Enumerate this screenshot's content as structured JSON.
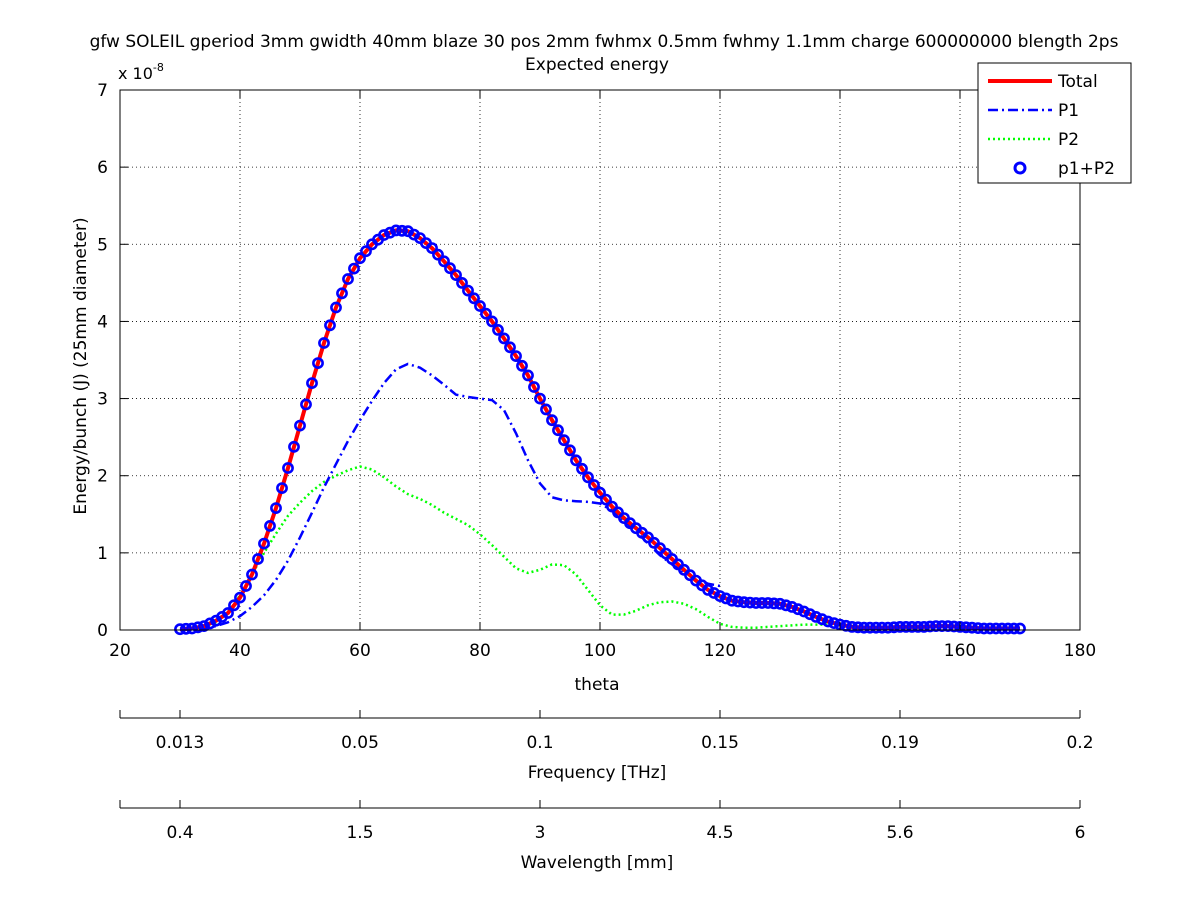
{
  "chart_data": {
    "type": "line",
    "title": "gfw SOLEIL gperiod 3mm gwidth 40mm blaze 30 pos 2mm fwhmx 0.5mm fwhmy 1.1mm charge 600000000 blength 2ps",
    "subtitle": "Expected energy",
    "xlabel": "theta",
    "ylabel": "Energy/bunch (J) (25mm diameter)",
    "y_exponent_label": "x 10",
    "y_exponent_power": "-8",
    "xlim": [
      20,
      180
    ],
    "ylim": [
      0,
      7
    ],
    "x_ticks": [
      "20",
      "40",
      "60",
      "80",
      "100",
      "120",
      "140",
      "160",
      "180"
    ],
    "y_ticks": [
      "0",
      "1",
      "2",
      "3",
      "4",
      "5",
      "6",
      "7"
    ],
    "grid": true,
    "legend_placement": "top-right",
    "colors": {
      "total": "#ff0000",
      "p1": "#0000ff",
      "p2": "#00ff00",
      "markers": "#0000ff"
    },
    "series": [
      {
        "name": "Total",
        "style": "solid",
        "x": [
          30,
          32,
          34,
          36,
          38,
          40,
          42,
          44,
          46,
          48,
          50,
          52,
          54,
          56,
          58,
          60,
          62,
          64,
          66,
          68,
          70,
          72,
          74,
          76,
          78,
          80,
          82,
          84,
          86,
          88,
          90,
          92,
          94,
          96,
          98,
          100,
          102,
          104,
          106,
          108,
          110,
          112,
          114,
          116,
          118,
          120,
          122,
          124,
          126,
          128,
          130,
          132,
          134,
          136,
          138,
          140,
          142,
          144,
          146,
          148,
          150,
          152,
          154,
          156,
          158,
          160,
          162,
          164,
          166,
          168,
          170
        ],
        "y": [
          0.01,
          0.02,
          0.05,
          0.12,
          0.22,
          0.42,
          0.72,
          1.12,
          1.58,
          2.1,
          2.65,
          3.2,
          3.72,
          4.18,
          4.55,
          4.82,
          5.0,
          5.12,
          5.18,
          5.17,
          5.08,
          4.95,
          4.78,
          4.6,
          4.4,
          4.2,
          4.0,
          3.78,
          3.55,
          3.3,
          3.0,
          2.72,
          2.46,
          2.2,
          1.98,
          1.78,
          1.6,
          1.45,
          1.32,
          1.2,
          1.06,
          0.92,
          0.78,
          0.64,
          0.52,
          0.44,
          0.38,
          0.36,
          0.35,
          0.35,
          0.34,
          0.3,
          0.24,
          0.17,
          0.11,
          0.07,
          0.04,
          0.03,
          0.03,
          0.03,
          0.04,
          0.04,
          0.04,
          0.05,
          0.05,
          0.04,
          0.03,
          0.02,
          0.02,
          0.02,
          0.02
        ]
      },
      {
        "name": "P1",
        "style": "dashdot",
        "x": [
          30,
          32,
          34,
          36,
          38,
          40,
          42,
          44,
          46,
          48,
          50,
          52,
          54,
          56,
          58,
          60,
          62,
          64,
          66,
          68,
          70,
          72,
          74,
          76,
          78,
          80,
          82,
          84,
          86,
          88,
          90,
          92,
          94,
          96,
          98,
          100,
          102,
          104,
          106,
          108,
          110,
          112,
          114,
          116,
          118,
          120
        ],
        "y": [
          0.0,
          0.01,
          0.02,
          0.05,
          0.1,
          0.18,
          0.3,
          0.45,
          0.65,
          0.9,
          1.2,
          1.52,
          1.85,
          2.15,
          2.45,
          2.72,
          2.97,
          3.2,
          3.38,
          3.45,
          3.4,
          3.3,
          3.18,
          3.05,
          3.02,
          3.0,
          2.98,
          2.85,
          2.55,
          2.2,
          1.9,
          1.72,
          1.68,
          1.67,
          1.66,
          1.64,
          1.55,
          1.42,
          1.28,
          1.12,
          0.97,
          0.85,
          0.75,
          0.66,
          0.6,
          0.57
        ]
      },
      {
        "name": "P2",
        "style": "dotted",
        "x": [
          30,
          32,
          34,
          36,
          38,
          40,
          42,
          44,
          46,
          48,
          50,
          52,
          54,
          56,
          58,
          60,
          62,
          64,
          66,
          68,
          70,
          72,
          74,
          76,
          78,
          80,
          82,
          84,
          86,
          88,
          90,
          92,
          94,
          96,
          98,
          100,
          102,
          104,
          106,
          108,
          110,
          112,
          114,
          116,
          118,
          120,
          122,
          124,
          126,
          128,
          130,
          132,
          134,
          136,
          138,
          140,
          142,
          144,
          146,
          148,
          150
        ],
        "y": [
          0.0,
          0.02,
          0.05,
          0.1,
          0.22,
          0.45,
          0.72,
          1.0,
          1.25,
          1.48,
          1.65,
          1.8,
          1.92,
          2.0,
          2.07,
          2.12,
          2.08,
          1.98,
          1.86,
          1.76,
          1.7,
          1.62,
          1.52,
          1.44,
          1.36,
          1.24,
          1.1,
          0.95,
          0.8,
          0.74,
          0.78,
          0.85,
          0.84,
          0.72,
          0.52,
          0.32,
          0.2,
          0.2,
          0.25,
          0.32,
          0.36,
          0.37,
          0.34,
          0.27,
          0.17,
          0.08,
          0.04,
          0.03,
          0.03,
          0.04,
          0.05,
          0.06,
          0.07,
          0.07,
          0.07,
          0.06,
          0.05,
          0.03,
          0.02,
          0.01,
          0.0
        ]
      },
      {
        "name": "p1+P2",
        "style": "circle-markers",
        "x_from": "Total"
      }
    ],
    "secondary_axes": [
      {
        "label": "Frequency [THz]",
        "tick_theta": [
          20,
          30,
          60,
          90,
          120,
          150,
          180
        ],
        "tick_labels": [
          "",
          "0.013",
          "0.05",
          "0.1",
          "0.15",
          "0.19",
          "0.2"
        ]
      },
      {
        "label": "Wavelength [mm]",
        "tick_theta": [
          20,
          30,
          60,
          90,
          120,
          150,
          180
        ],
        "tick_labels": [
          "",
          "0.4",
          "1.5",
          "3",
          "4.5",
          "5.6",
          "6"
        ]
      }
    ]
  }
}
